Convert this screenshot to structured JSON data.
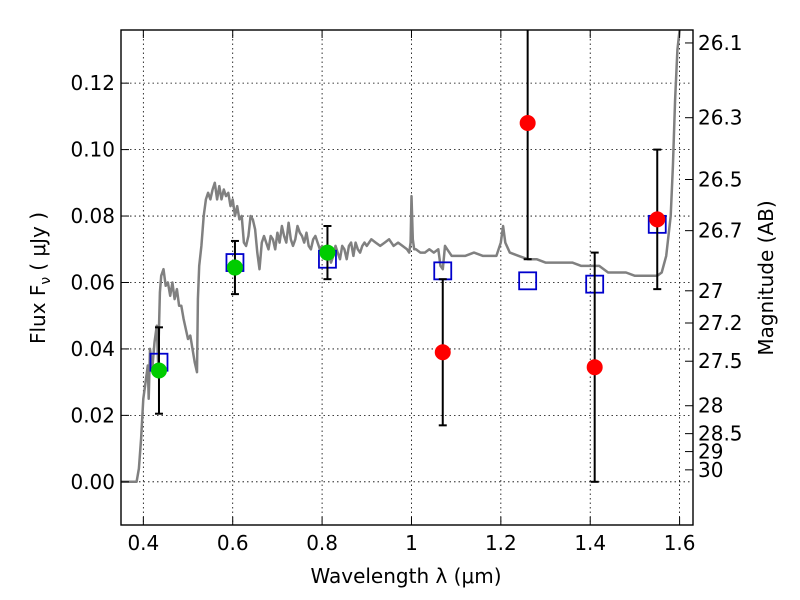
{
  "chart_data": {
    "type": "scatter",
    "xlabel": "Wavelength  λ (μm)",
    "ylabel": "Flux  F",
    "ylabel_sub": "ν",
    "ylabel_unit": "( μJy )",
    "y2label": "Magnitude (AB)",
    "xlim": [
      0.35,
      1.63
    ],
    "ylim": [
      -0.013,
      0.136
    ],
    "grid": true,
    "x_ticks": [
      {
        "v": 0.4,
        "label": "0.4"
      },
      {
        "v": 0.6,
        "label": "0.6"
      },
      {
        "v": 0.8,
        "label": "0.8"
      },
      {
        "v": 1.0,
        "label": "1"
      },
      {
        "v": 1.2,
        "label": "1.2"
      },
      {
        "v": 1.4,
        "label": "1.4"
      },
      {
        "v": 1.6,
        "label": "1.6"
      }
    ],
    "y_ticks": [
      {
        "v": 0.0,
        "label": "0.00"
      },
      {
        "v": 0.02,
        "label": "0.02"
      },
      {
        "v": 0.04,
        "label": "0.04"
      },
      {
        "v": 0.06,
        "label": "0.06"
      },
      {
        "v": 0.08,
        "label": "0.08"
      },
      {
        "v": 0.1,
        "label": "0.10"
      },
      {
        "v": 0.12,
        "label": "0.12"
      }
    ],
    "mag_ticks": [
      {
        "v": 0.1321,
        "label": "26.1"
      },
      {
        "v": 0.1096,
        "label": "26.3"
      },
      {
        "v": 0.091,
        "label": "26.5"
      },
      {
        "v": 0.0756,
        "label": "26.7"
      },
      {
        "v": 0.0575,
        "label": "27"
      },
      {
        "v": 0.0478,
        "label": "27.2"
      },
      {
        "v": 0.0363,
        "label": "27.5"
      },
      {
        "v": 0.0229,
        "label": "28"
      },
      {
        "v": 0.0145,
        "label": "28.5"
      },
      {
        "v": 0.0091,
        "label": "29"
      },
      {
        "v": 0.0036,
        "label": "30"
      }
    ],
    "series": [
      {
        "name": "",
        "kind": "model-spectrum",
        "color": "#808080",
        "points": [
          [
            0.35,
            0.0
          ],
          [
            0.37,
            0.0
          ],
          [
            0.385,
            0.0
          ],
          [
            0.39,
            0.004
          ],
          [
            0.395,
            0.013
          ],
          [
            0.4,
            0.025
          ],
          [
            0.405,
            0.03
          ],
          [
            0.41,
            0.035
          ],
          [
            0.412,
            0.025
          ],
          [
            0.415,
            0.04
          ],
          [
            0.42,
            0.034
          ],
          [
            0.425,
            0.042
          ],
          [
            0.43,
            0.047
          ],
          [
            0.433,
            0.036
          ],
          [
            0.437,
            0.057
          ],
          [
            0.44,
            0.062
          ],
          [
            0.445,
            0.064
          ],
          [
            0.45,
            0.059
          ],
          [
            0.455,
            0.06
          ],
          [
            0.46,
            0.056
          ],
          [
            0.465,
            0.06
          ],
          [
            0.47,
            0.055
          ],
          [
            0.475,
            0.058
          ],
          [
            0.48,
            0.053
          ],
          [
            0.485,
            0.053
          ],
          [
            0.49,
            0.049
          ],
          [
            0.495,
            0.046
          ],
          [
            0.5,
            0.043
          ],
          [
            0.505,
            0.044
          ],
          [
            0.51,
            0.04
          ],
          [
            0.515,
            0.036
          ],
          [
            0.52,
            0.033
          ],
          [
            0.522,
            0.055
          ],
          [
            0.525,
            0.065
          ],
          [
            0.53,
            0.071
          ],
          [
            0.535,
            0.08
          ],
          [
            0.54,
            0.085
          ],
          [
            0.545,
            0.087
          ],
          [
            0.55,
            0.085
          ],
          [
            0.555,
            0.088
          ],
          [
            0.56,
            0.09
          ],
          [
            0.565,
            0.085
          ],
          [
            0.57,
            0.089
          ],
          [
            0.575,
            0.085
          ],
          [
            0.58,
            0.088
          ],
          [
            0.585,
            0.086
          ],
          [
            0.59,
            0.087
          ],
          [
            0.595,
            0.083
          ],
          [
            0.6,
            0.085
          ],
          [
            0.605,
            0.08
          ],
          [
            0.61,
            0.083
          ],
          [
            0.615,
            0.079
          ],
          [
            0.62,
            0.08
          ],
          [
            0.625,
            0.072
          ],
          [
            0.63,
            0.071
          ],
          [
            0.635,
            0.074
          ],
          [
            0.64,
            0.08
          ],
          [
            0.645,
            0.079
          ],
          [
            0.65,
            0.076
          ],
          [
            0.655,
            0.069
          ],
          [
            0.66,
            0.064
          ],
          [
            0.665,
            0.072
          ],
          [
            0.67,
            0.074
          ],
          [
            0.675,
            0.072
          ],
          [
            0.68,
            0.07
          ],
          [
            0.685,
            0.074
          ],
          [
            0.69,
            0.073
          ],
          [
            0.695,
            0.07
          ],
          [
            0.7,
            0.075
          ],
          [
            0.705,
            0.072
          ],
          [
            0.71,
            0.077
          ],
          [
            0.715,
            0.074
          ],
          [
            0.72,
            0.072
          ],
          [
            0.725,
            0.078
          ],
          [
            0.73,
            0.073
          ],
          [
            0.735,
            0.071
          ],
          [
            0.74,
            0.073
          ],
          [
            0.745,
            0.077
          ],
          [
            0.75,
            0.075
          ],
          [
            0.755,
            0.074
          ],
          [
            0.76,
            0.072
          ],
          [
            0.765,
            0.075
          ],
          [
            0.77,
            0.071
          ],
          [
            0.775,
            0.07
          ],
          [
            0.78,
            0.073
          ],
          [
            0.785,
            0.074
          ],
          [
            0.79,
            0.072
          ],
          [
            0.795,
            0.07
          ],
          [
            0.8,
            0.071
          ],
          [
            0.805,
            0.069
          ],
          [
            0.81,
            0.071
          ],
          [
            0.815,
            0.069
          ],
          [
            0.82,
            0.066
          ],
          [
            0.825,
            0.068
          ],
          [
            0.83,
            0.071
          ],
          [
            0.835,
            0.069
          ],
          [
            0.84,
            0.067
          ],
          [
            0.845,
            0.071
          ],
          [
            0.85,
            0.07
          ],
          [
            0.855,
            0.067
          ],
          [
            0.86,
            0.071
          ],
          [
            0.865,
            0.072
          ],
          [
            0.87,
            0.068
          ],
          [
            0.875,
            0.072
          ],
          [
            0.88,
            0.07
          ],
          [
            0.885,
            0.069
          ],
          [
            0.89,
            0.071
          ],
          [
            0.895,
            0.072
          ],
          [
            0.9,
            0.071
          ],
          [
            0.91,
            0.073
          ],
          [
            0.92,
            0.072
          ],
          [
            0.93,
            0.071
          ],
          [
            0.94,
            0.072
          ],
          [
            0.95,
            0.073
          ],
          [
            0.96,
            0.071
          ],
          [
            0.97,
            0.072
          ],
          [
            0.98,
            0.071
          ],
          [
            0.99,
            0.07
          ],
          [
            0.995,
            0.069
          ],
          [
            0.998,
            0.072
          ],
          [
            1.0,
            0.086
          ],
          [
            1.003,
            0.073
          ],
          [
            1.006,
            0.07
          ],
          [
            1.01,
            0.07
          ],
          [
            1.02,
            0.069
          ],
          [
            1.03,
            0.069
          ],
          [
            1.04,
            0.07
          ],
          [
            1.05,
            0.069
          ],
          [
            1.06,
            0.07
          ],
          [
            1.065,
            0.065
          ],
          [
            1.07,
            0.064
          ],
          [
            1.075,
            0.071
          ],
          [
            1.08,
            0.07
          ],
          [
            1.09,
            0.068
          ],
          [
            1.1,
            0.068
          ],
          [
            1.12,
            0.068
          ],
          [
            1.14,
            0.069
          ],
          [
            1.16,
            0.068
          ],
          [
            1.18,
            0.068
          ],
          [
            1.19,
            0.068
          ],
          [
            1.2,
            0.072
          ],
          [
            1.205,
            0.077
          ],
          [
            1.21,
            0.072
          ],
          [
            1.22,
            0.069
          ],
          [
            1.24,
            0.068
          ],
          [
            1.26,
            0.067
          ],
          [
            1.28,
            0.067
          ],
          [
            1.3,
            0.066
          ],
          [
            1.32,
            0.066
          ],
          [
            1.34,
            0.066
          ],
          [
            1.36,
            0.066
          ],
          [
            1.38,
            0.065
          ],
          [
            1.4,
            0.065
          ],
          [
            1.42,
            0.065
          ],
          [
            1.44,
            0.063
          ],
          [
            1.46,
            0.063
          ],
          [
            1.48,
            0.063
          ],
          [
            1.5,
            0.062
          ],
          [
            1.52,
            0.062
          ],
          [
            1.54,
            0.062
          ],
          [
            1.55,
            0.062
          ],
          [
            1.56,
            0.063
          ],
          [
            1.57,
            0.068
          ],
          [
            1.58,
            0.08
          ],
          [
            1.585,
            0.095
          ],
          [
            1.59,
            0.115
          ],
          [
            1.595,
            0.13
          ],
          [
            1.6,
            0.136
          ]
        ]
      },
      {
        "name": "",
        "kind": "model-fluxes",
        "color": "#0000cc",
        "points": [
          [
            0.435,
            0.036
          ],
          [
            0.605,
            0.066
          ],
          [
            0.812,
            0.067
          ],
          [
            1.07,
            0.0635
          ],
          [
            1.26,
            0.0605
          ],
          [
            1.41,
            0.0595
          ],
          [
            1.55,
            0.0775
          ]
        ]
      },
      {
        "name": "",
        "kind": "detections",
        "color": "#00cc00",
        "points": [
          [
            0.435,
            0.0335,
            0.013
          ],
          [
            0.605,
            0.0645,
            0.008
          ],
          [
            0.812,
            0.069,
            0.008
          ]
        ]
      },
      {
        "name": "",
        "kind": "non-detections",
        "color": "#ff0000",
        "points": [
          [
            1.07,
            0.039,
            0.022
          ],
          [
            1.26,
            0.108,
            0.041
          ],
          [
            1.41,
            0.0345,
            0.0345
          ],
          [
            1.55,
            0.079,
            0.021
          ]
        ]
      }
    ]
  }
}
